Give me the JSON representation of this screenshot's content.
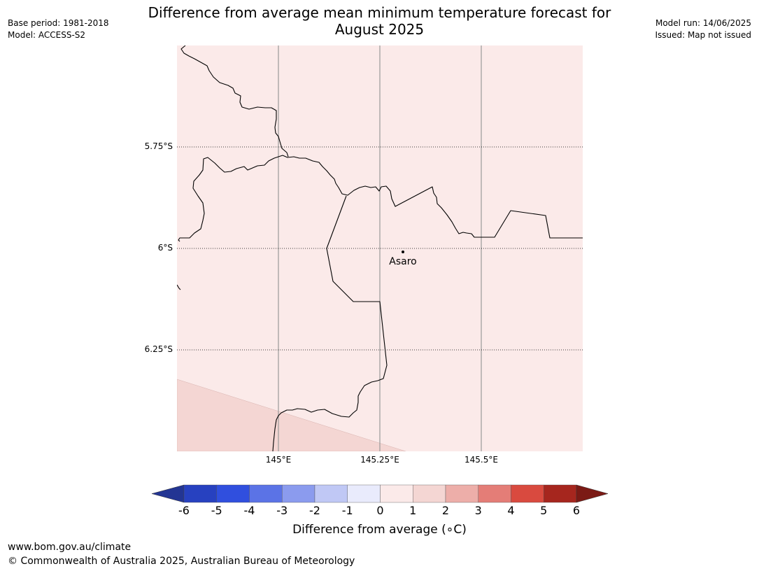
{
  "header": {
    "title_line1": "Difference from average mean minimum temperature forecast for",
    "title_line2": "August 2025",
    "base_period": "Base period: 1981-2018",
    "model": "Model: ACCESS-S2",
    "model_run": "Model run: 14/06/2025",
    "issued": "Issued: Map not issued"
  },
  "map": {
    "lat_labels": [
      "5.75°S",
      "6°S",
      "6.25°S"
    ],
    "lon_labels": [
      "145°E",
      "145.25°E",
      "145.5°E"
    ],
    "place": {
      "name": "Asaro",
      "lon": 145.3,
      "lat": -6.01
    },
    "background_color": "#fbeae9",
    "anomaly_region_color": "#f4d6d3",
    "border_color": "#000000",
    "gridline_color": "#999999"
  },
  "colorbar": {
    "label": "Difference from average (∘C)",
    "ticks": [
      "-6",
      "-5",
      "-4",
      "-3",
      "-2",
      "-1",
      "0",
      "1",
      "2",
      "3",
      "4",
      "5",
      "6"
    ],
    "colors": [
      "#233593",
      "#2741c0",
      "#304fde",
      "#5b73e6",
      "#8b9bee",
      "#c0c8f5",
      "#e9ebfc",
      "#fbeae9",
      "#f4d6d3",
      "#edaea9",
      "#e47d77",
      "#d94a3f",
      "#a6261e",
      "#7b1a15"
    ]
  },
  "footer": {
    "url": "www.bom.gov.au/climate",
    "copyright": "© Commonwealth of Australia 2025, Australian Bureau of Meteorology"
  }
}
